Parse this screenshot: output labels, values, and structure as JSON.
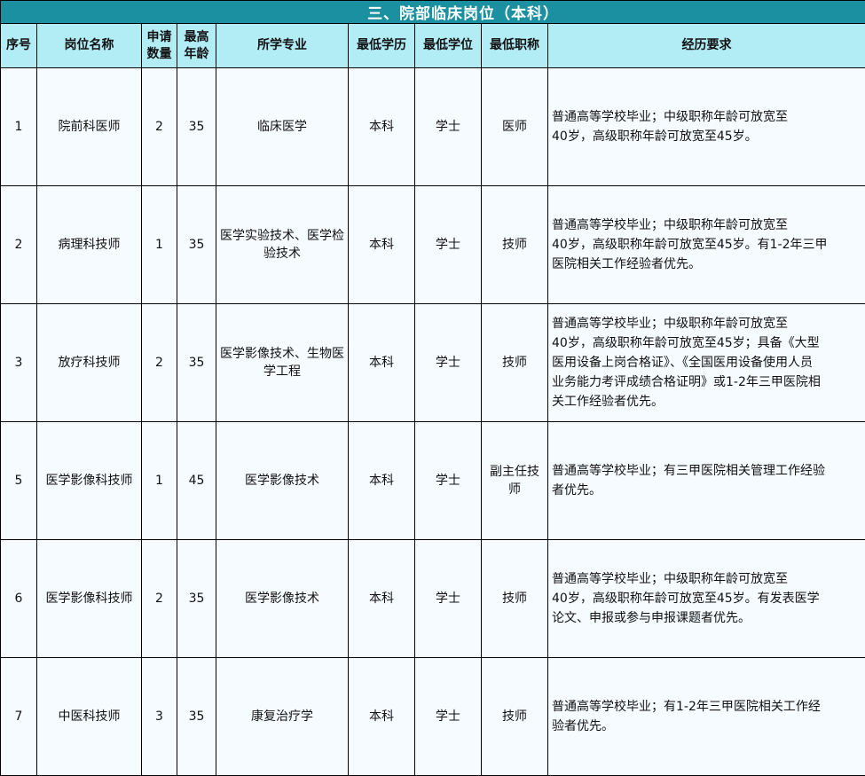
{
  "title": "三、院部临床岗位（本科）",
  "headers": [
    "序号",
    "岗位名称",
    "申请数量",
    "最高年龄",
    "所学专业",
    "最低学历",
    "最低学位",
    "最低职称",
    "经历要求"
  ],
  "colors": {
    "title_bg": "#1a90a0",
    "header_bg": "#b2ecf5",
    "row_bg": "#f6fbff"
  },
  "rows": [
    {
      "no": "1",
      "position": "院前科医师",
      "count": "2",
      "age": "35",
      "major": "临床医学",
      "education": "本科",
      "degree": "学士",
      "title": "医师",
      "experience": [
        "普通高等学校毕业；中级职称年龄可放宽至",
        "40岁，高级职称年龄可放宽至45岁。"
      ]
    },
    {
      "no": "2",
      "position": "病理科技师",
      "count": "1",
      "age": "35",
      "major": "医学实验技术、医学检验技术",
      "education": "本科",
      "degree": "学士",
      "title": "技师",
      "experience": [
        "普通高等学校毕业；中级职称年龄可放宽至",
        "40岁，高级职称年龄可放宽至45岁。有1-2年三甲",
        "医院相关工作经验者优先。"
      ]
    },
    {
      "no": "3",
      "position": "放疗科技师",
      "count": "2",
      "age": "35",
      "major": "医学影像技术、生物医学工程",
      "education": "本科",
      "degree": "学士",
      "title": "技师",
      "experience": [
        "普通高等学校毕业；中级职称年龄可放宽至",
        "40岁，高级职称年龄可放宽至45岁；具备《大型",
        "医用设备上岗合格证》、《全国医用设备使用人员",
        "业务能力考评成绩合格证明》或1-2年三甲医院相",
        "关工作经验者优先。"
      ]
    },
    {
      "no": "5",
      "position": "医学影像科技师",
      "count": "1",
      "age": "45",
      "major": "医学影像技术",
      "education": "本科",
      "degree": "学士",
      "title": "副主任技师",
      "experience": [
        "普通高等学校毕业；有三甲医院相关管理工作经验",
        "者优先。"
      ]
    },
    {
      "no": "6",
      "position": "医学影像科技师",
      "count": "2",
      "age": "35",
      "major": "医学影像技术",
      "education": "本科",
      "degree": "学士",
      "title": "技师",
      "experience": [
        "普通高等学校毕业；中级职称年龄可放宽至",
        "40岁，高级职称年龄可放宽至45岁。有发表医学",
        "论文、申报或参与申报课题者优先。"
      ]
    },
    {
      "no": "7",
      "position": "中医科技师",
      "count": "3",
      "age": "35",
      "major": "康复治疗学",
      "education": "本科",
      "degree": "学士",
      "title": "技师",
      "experience": [
        "普通高等学校毕业；有1-2年三甲医院相关工作经",
        "验者优先。"
      ]
    }
  ]
}
